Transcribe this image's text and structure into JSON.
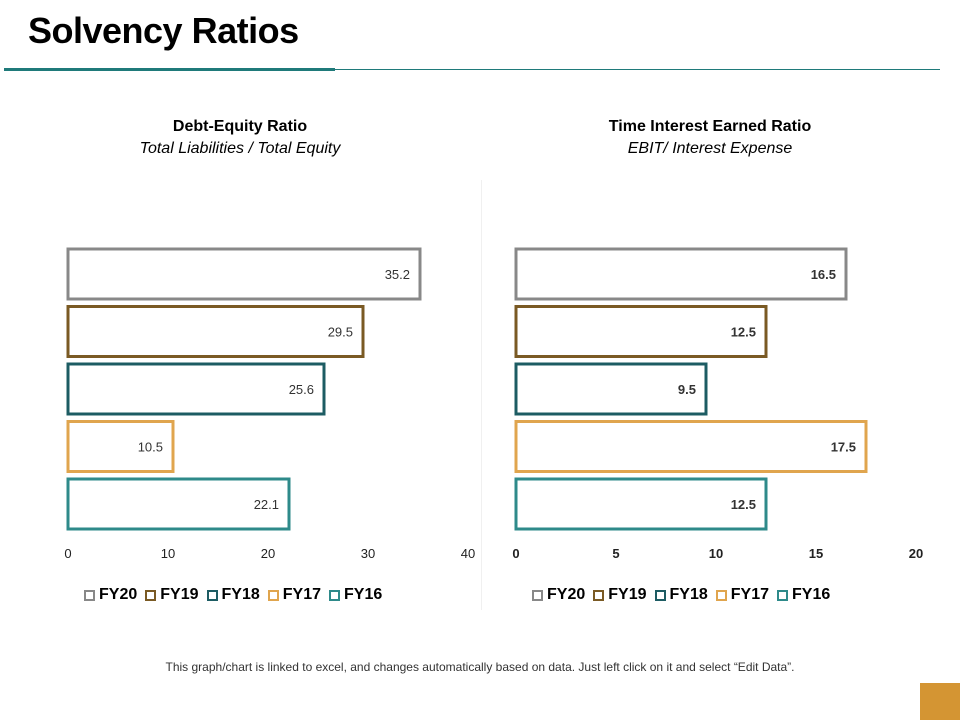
{
  "page": {
    "title": "Solvency Ratios",
    "footnote": "This graph/chart is linked to excel, and changes automatically based on data. Just left click on it and select “Edit Data”."
  },
  "colors": {
    "FY20": "#888888",
    "FY19": "#7a5a24",
    "FY18": "#1d5c63",
    "FY17": "#e0a54e",
    "FY16": "#2e8a8a",
    "accent": "#1f7a7a",
    "corner": "#d49533"
  },
  "chart_data": [
    {
      "type": "bar",
      "orientation": "horizontal",
      "title": "Debt-Equity Ratio",
      "subtitle": "Total Liabilities / Total Equity",
      "categories": [
        "FY20",
        "FY19",
        "FY18",
        "FY17",
        "FY16"
      ],
      "values": [
        35.2,
        29.5,
        25.6,
        10.5,
        22.1
      ],
      "xlim": [
        0,
        40
      ],
      "ticks": [
        0,
        10,
        20,
        30,
        40
      ],
      "label_weight": "normal",
      "tick_weight": "normal",
      "legend": [
        "FY20",
        "FY19",
        "FY18",
        "FY17",
        "FY16"
      ]
    },
    {
      "type": "bar",
      "orientation": "horizontal",
      "title": "Time Interest Earned Ratio",
      "subtitle": "EBIT/ Interest Expense",
      "categories": [
        "FY20",
        "FY19",
        "FY18",
        "FY17",
        "FY16"
      ],
      "values": [
        16.5,
        12.5,
        9.5,
        17.5,
        12.5
      ],
      "xlim": [
        0,
        20
      ],
      "ticks": [
        0,
        5,
        10,
        15,
        20
      ],
      "label_weight": "bold",
      "tick_weight": "bold",
      "legend": [
        "FY20",
        "FY19",
        "FY18",
        "FY17",
        "FY16"
      ]
    }
  ]
}
